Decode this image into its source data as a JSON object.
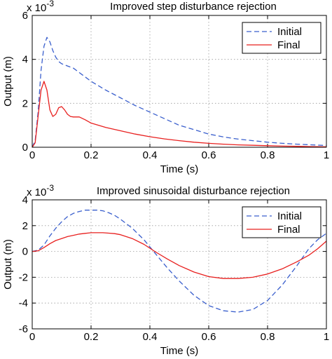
{
  "chart_data": [
    {
      "type": "line",
      "title": "Improved step disturbance rejection",
      "xlabel": "Time (s)",
      "ylabel": "Output (m)",
      "exponent_label": "x 10",
      "exponent_power": "-3",
      "xlim": [
        0,
        1
      ],
      "ylim": [
        0,
        6
      ],
      "xticks": [
        "0",
        "0.2",
        "0.4",
        "0.6",
        "0.8",
        "1"
      ],
      "yticks": [
        "0",
        "2",
        "4",
        "6"
      ],
      "grid": true,
      "legend_position": "top-right",
      "series": [
        {
          "name": "Initial",
          "style": "dashed",
          "color": "#3a5fcd",
          "x": [
            0,
            0.01,
            0.02,
            0.03,
            0.04,
            0.05,
            0.06,
            0.07,
            0.08,
            0.09,
            0.1,
            0.12,
            0.14,
            0.16,
            0.18,
            0.2,
            0.25,
            0.3,
            0.35,
            0.4,
            0.45,
            0.5,
            0.55,
            0.6,
            0.65,
            0.7,
            0.75,
            0.8,
            0.85,
            0.9,
            0.95,
            1.0
          ],
          "y": [
            0,
            0.3,
            1.6,
            3.5,
            4.6,
            5.0,
            4.8,
            4.4,
            4.1,
            3.9,
            3.8,
            3.7,
            3.6,
            3.4,
            3.2,
            3.0,
            2.6,
            2.25,
            1.9,
            1.6,
            1.3,
            1.0,
            0.8,
            0.6,
            0.47,
            0.37,
            0.3,
            0.23,
            0.18,
            0.14,
            0.11,
            0.08
          ]
        },
        {
          "name": "Final",
          "style": "solid",
          "color": "#e8201f",
          "x": [
            0,
            0.01,
            0.02,
            0.03,
            0.04,
            0.05,
            0.06,
            0.07,
            0.08,
            0.09,
            0.1,
            0.11,
            0.12,
            0.13,
            0.14,
            0.16,
            0.18,
            0.2,
            0.25,
            0.3,
            0.35,
            0.4,
            0.45,
            0.5,
            0.55,
            0.6,
            0.65,
            0.7,
            0.75,
            0.8,
            0.85,
            0.9,
            0.95,
            1.0
          ],
          "y": [
            0,
            0.2,
            1.4,
            2.6,
            3.0,
            2.6,
            1.7,
            1.4,
            1.5,
            1.8,
            1.85,
            1.7,
            1.5,
            1.4,
            1.38,
            1.38,
            1.25,
            1.1,
            0.9,
            0.75,
            0.6,
            0.48,
            0.38,
            0.3,
            0.23,
            0.18,
            0.14,
            0.11,
            0.09,
            0.07,
            0.05,
            0.04,
            0.03,
            0.02
          ]
        }
      ]
    },
    {
      "type": "line",
      "title": "Improved sinusoidal disturbance rejection",
      "xlabel": "Time (s)",
      "ylabel": "Output (m)",
      "exponent_label": "x 10",
      "exponent_power": "-3",
      "xlim": [
        0,
        1
      ],
      "ylim": [
        -6,
        4
      ],
      "xticks": [
        "0",
        "0.2",
        "0.4",
        "0.6",
        "0.8",
        "1"
      ],
      "yticks": [
        "-6",
        "-4",
        "-2",
        "0",
        "2",
        "4"
      ],
      "grid": true,
      "legend_position": "top-right",
      "series": [
        {
          "name": "Initial",
          "style": "dashed",
          "color": "#3a5fcd",
          "x": [
            0,
            0.02,
            0.04,
            0.06,
            0.08,
            0.1,
            0.12,
            0.14,
            0.16,
            0.18,
            0.2,
            0.22,
            0.24,
            0.26,
            0.28,
            0.3,
            0.34,
            0.38,
            0.42,
            0.46,
            0.5,
            0.55,
            0.6,
            0.65,
            0.7,
            0.75,
            0.8,
            0.85,
            0.9,
            0.94,
            0.97,
            1.0
          ],
          "y": [
            0,
            0.1,
            0.5,
            1.2,
            1.8,
            2.3,
            2.7,
            2.95,
            3.1,
            3.2,
            3.2,
            3.2,
            3.15,
            3.0,
            2.8,
            2.5,
            1.8,
            0.9,
            -0.2,
            -1.3,
            -2.3,
            -3.4,
            -4.2,
            -4.6,
            -4.7,
            -4.5,
            -3.8,
            -2.6,
            -1.1,
            0.2,
            0.9,
            1.4
          ]
        },
        {
          "name": "Final",
          "style": "solid",
          "color": "#e8201f",
          "x": [
            0,
            0.02,
            0.04,
            0.06,
            0.08,
            0.1,
            0.12,
            0.14,
            0.16,
            0.18,
            0.2,
            0.22,
            0.24,
            0.26,
            0.28,
            0.3,
            0.34,
            0.38,
            0.42,
            0.46,
            0.5,
            0.55,
            0.6,
            0.65,
            0.7,
            0.75,
            0.8,
            0.85,
            0.9,
            0.94,
            0.97,
            1.0
          ],
          "y": [
            0,
            0.05,
            0.3,
            0.6,
            0.85,
            1.0,
            1.15,
            1.25,
            1.35,
            1.4,
            1.45,
            1.45,
            1.45,
            1.42,
            1.38,
            1.3,
            1.0,
            0.55,
            -0.05,
            -0.6,
            -1.1,
            -1.6,
            -1.95,
            -2.1,
            -2.1,
            -2.0,
            -1.75,
            -1.35,
            -0.8,
            -0.3,
            0.2,
            0.8
          ]
        }
      ]
    }
  ]
}
